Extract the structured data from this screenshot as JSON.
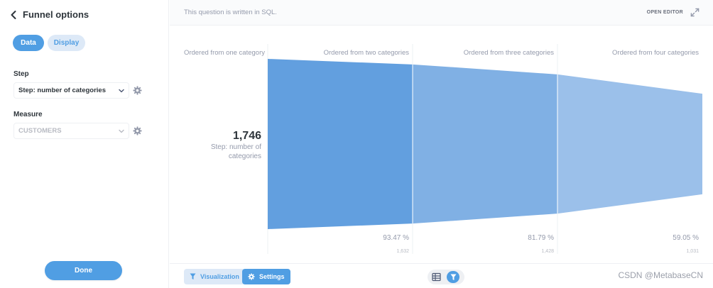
{
  "sidebar": {
    "title": "Funnel options",
    "tabs": {
      "data": "Data",
      "display": "Display"
    },
    "step": {
      "label": "Step",
      "value": "Step: number of categories"
    },
    "measure": {
      "label": "Measure",
      "value": "CUSTOMERS"
    },
    "done_label": "Done"
  },
  "topbar": {
    "note": "This question is written in SQL.",
    "open_editor": "OPEN EDITOR"
  },
  "bottombar": {
    "visualization_label": "Visualization",
    "settings_label": "Settings",
    "watermark": "CSDN @MetabaseCN"
  },
  "colors": {
    "accent": "#509ee3",
    "funnel": [
      "#629fdf",
      "#80b0e4",
      "#9bc0ea"
    ]
  },
  "chart_data": {
    "type": "funnel",
    "steps": [
      {
        "name": "Ordered from one category",
        "value": 1746
      },
      {
        "name": "Ordered from two categories",
        "value": 1632,
        "percent": "93.47 %",
        "value_label": "1,632"
      },
      {
        "name": "Ordered from three categories",
        "value": 1428,
        "percent": "81.79 %",
        "value_label": "1,428"
      },
      {
        "name": "Ordered from four categories",
        "value": 1031,
        "percent": "59.05 %",
        "value_label": "1,031"
      }
    ],
    "headline": {
      "value": "1,746",
      "label": "Step: number of categories"
    }
  }
}
